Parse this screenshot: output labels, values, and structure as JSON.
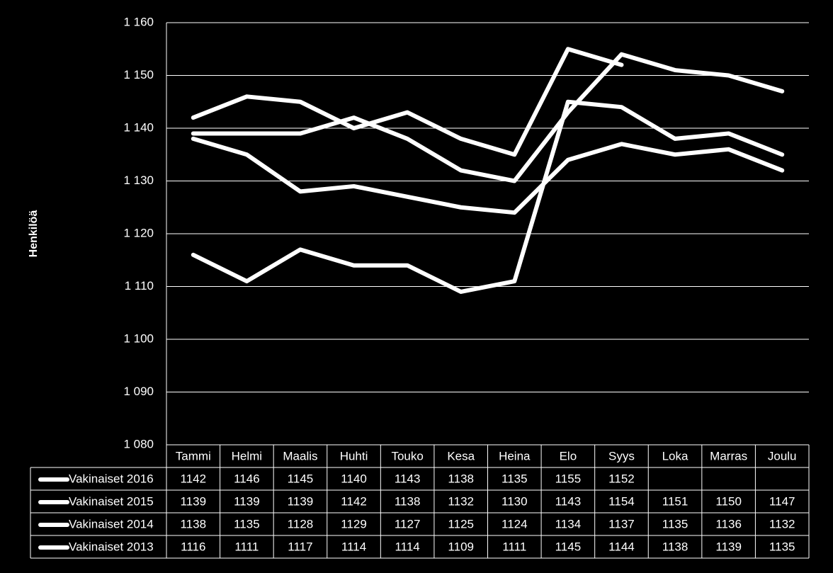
{
  "chart_data": {
    "type": "line",
    "y_label": "Henkilöä",
    "categories": [
      "Tammi",
      "Helmi",
      "Maalis",
      "Huhti",
      "Touko",
      "Kesa",
      "Heina",
      "Elo",
      "Syys",
      "Loka",
      "Marras",
      "Joulu"
    ],
    "series": [
      {
        "name": "Vakinaiset 2016",
        "color": "#ffffff",
        "values": [
          1142,
          1146,
          1145,
          1140,
          1143,
          1138,
          1135,
          1155,
          1152,
          null,
          null,
          null
        ]
      },
      {
        "name": "Vakinaiset 2015",
        "color": "#ffffff",
        "values": [
          1139,
          1139,
          1139,
          1142,
          1138,
          1132,
          1130,
          1143,
          1154,
          1151,
          1150,
          1147
        ]
      },
      {
        "name": "Vakinaiset 2014",
        "color": "#ffffff",
        "values": [
          1138,
          1135,
          1128,
          1129,
          1127,
          1125,
          1124,
          1134,
          1137,
          1135,
          1136,
          1132
        ]
      },
      {
        "name": "Vakinaiset 2013",
        "color": "#ffffff",
        "values": [
          1116,
          1111,
          1117,
          1114,
          1114,
          1109,
          1111,
          1145,
          1144,
          1138,
          1139,
          1135
        ]
      }
    ],
    "ylim": [
      1080,
      1160
    ],
    "yticks": [
      {
        "value": 1080,
        "label": "1 080"
      },
      {
        "value": 1090,
        "label": "1 090"
      },
      {
        "value": 1100,
        "label": "1 100"
      },
      {
        "value": 1110,
        "label": "1 110"
      },
      {
        "value": 1120,
        "label": "1 120"
      },
      {
        "value": 1130,
        "label": "1 130"
      },
      {
        "value": 1140,
        "label": "1 140"
      },
      {
        "value": 1150,
        "label": "1 150"
      },
      {
        "value": 1160,
        "label": "1 160"
      }
    ],
    "grid": true
  }
}
